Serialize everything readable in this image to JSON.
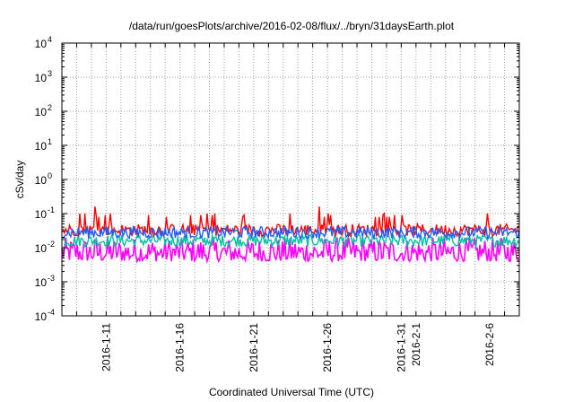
{
  "chart_data": {
    "type": "line",
    "title": "/data/run/goesPlots/archive/2016-02-08/flux/../bryn/31daysEarth.plot",
    "xlabel": "Coordinated Universal Time (UTC)",
    "ylabel": "cSv/day",
    "y_scale": "log",
    "ylim": [
      0.0001,
      10000
    ],
    "y_ticks": [
      {
        "base": "10",
        "exp": "-4"
      },
      {
        "base": "10",
        "exp": "-3"
      },
      {
        "base": "10",
        "exp": "-2"
      },
      {
        "base": "10",
        "exp": "-1"
      },
      {
        "base": "10",
        "exp": "0"
      },
      {
        "base": "10",
        "exp": "1"
      },
      {
        "base": "10",
        "exp": "2"
      },
      {
        "base": "10",
        "exp": "3"
      },
      {
        "base": "10",
        "exp": "4"
      }
    ],
    "xlim": [
      "2016-01-08",
      "2016-02-08"
    ],
    "x_ticks": [
      "2016-1-11",
      "2016-1-16",
      "2016-1-21",
      "2016-1-26",
      "2016-1-31",
      "2016-2-1",
      "2016-2-6"
    ],
    "grid": true,
    "series": [
      {
        "color": "#ff0000",
        "level": 0.033,
        "spikes": [
          0.08,
          0.09,
          0.1,
          0.16,
          0.1,
          0.09,
          0.08
        ]
      },
      {
        "color": "#1f5fff",
        "level": 0.028
      },
      {
        "color": "#00c0a0",
        "level": 0.016
      },
      {
        "color": "#ff00ff",
        "level": 0.006,
        "range": [
          0.004,
          0.02
        ]
      }
    ]
  }
}
